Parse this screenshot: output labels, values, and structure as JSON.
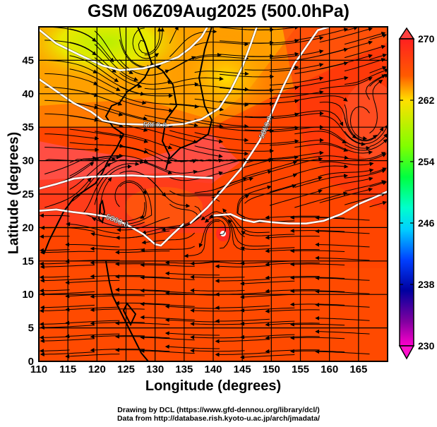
{
  "title": "GSM 06Z09Aug2025 (500.0hPa)",
  "xlabel": "Longitude (degrees)",
  "ylabel": "Latitude  (degrees)",
  "credits": [
    "Drawing by DCL (https://www.gfd-dennou.org/library/dcl/)",
    "Data from http://database.rish.kyoto-u.ac.jp/arch/jmadata/"
  ],
  "chart_data": {
    "type": "heatmap",
    "title": "GSM 06Z09Aug2025 (500.0hPa)",
    "xlabel": "Longitude (degrees)",
    "ylabel": "Latitude  (degrees)",
    "xlim": [
      110,
      170
    ],
    "ylim": [
      0,
      50
    ],
    "xticks": [
      110,
      115,
      120,
      125,
      130,
      135,
      140,
      145,
      150,
      155,
      160,
      165
    ],
    "yticks": [
      0,
      5,
      10,
      15,
      20,
      25,
      30,
      35,
      40,
      45
    ],
    "grid": true,
    "colorbar": {
      "ticks": [
        230,
        238,
        246,
        254,
        262,
        270
      ],
      "range": [
        230,
        270
      ],
      "extend": "both",
      "placement": "right",
      "colors": [
        "#ff00cc",
        "#0000a0",
        "#00e5ff",
        "#00ff40",
        "#ffe800",
        "#ff2020"
      ]
    },
    "contour_label": "5880.0",
    "contours": [
      {
        "label": "5880.0",
        "points": [
          [
            110,
            49.6
          ],
          [
            113,
            47.5
          ],
          [
            117,
            45.8
          ],
          [
            121,
            44.2
          ],
          [
            124,
            43.5
          ],
          [
            128,
            43.8
          ],
          [
            131,
            44.5
          ],
          [
            134,
            45.5
          ],
          [
            136,
            46.8
          ],
          [
            138,
            48.5
          ],
          [
            139,
            50
          ]
        ]
      },
      {
        "label": "5880.0",
        "points": [
          [
            110,
            42.2
          ],
          [
            113,
            40.4
          ],
          [
            116,
            38.6
          ],
          [
            119,
            37.3
          ],
          [
            121,
            36.0
          ],
          [
            124,
            35.5
          ],
          [
            128,
            35.4
          ],
          [
            132,
            35.3
          ],
          [
            135,
            35.5
          ],
          [
            138,
            36.2
          ],
          [
            141,
            37.8
          ],
          [
            143,
            40.5
          ],
          [
            145,
            44
          ],
          [
            146.5,
            47.5
          ],
          [
            147.5,
            50
          ]
        ]
      },
      {
        "label": "5880.0",
        "points": [
          [
            136,
            20.6
          ],
          [
            139,
            23
          ],
          [
            142,
            26
          ],
          [
            145,
            29
          ],
          [
            148,
            33
          ],
          [
            150,
            37
          ],
          [
            152,
            41
          ],
          [
            154,
            44.5
          ],
          [
            156,
            47
          ],
          [
            158,
            49.5
          ],
          [
            160,
            50
          ]
        ]
      },
      {
        "label": "5880.0",
        "points": [
          [
            110,
            25.8
          ],
          [
            113,
            26.5
          ],
          [
            116,
            27.3
          ],
          [
            119,
            27.6
          ],
          [
            122,
            27.7
          ],
          [
            126,
            27.8
          ],
          [
            130,
            27.6
          ],
          [
            134,
            27.7
          ],
          [
            137,
            27.5
          ],
          [
            140,
            27.4
          ]
        ]
      },
      {
        "label": "5880.0",
        "points": [
          [
            110,
            22.5
          ],
          [
            113,
            22.7
          ],
          [
            116,
            22.3
          ],
          [
            119,
            22.0
          ],
          [
            122,
            21.6
          ],
          [
            125,
            20.5
          ],
          [
            128,
            19.0
          ],
          [
            130,
            17.5
          ],
          [
            131,
            17.3
          ],
          [
            133,
            19.0
          ],
          [
            135,
            20.6
          ]
        ]
      },
      {
        "label": "5880.0",
        "points": [
          [
            140,
            21.8
          ],
          [
            143,
            22.0
          ],
          [
            145,
            21.2
          ],
          [
            147,
            20.8
          ],
          [
            148,
            21.0
          ],
          [
            150,
            20.8
          ],
          [
            153,
            20.6
          ],
          [
            156,
            20.6
          ],
          [
            159,
            21.0
          ],
          [
            162,
            22.0
          ],
          [
            165,
            23.5
          ],
          [
            168,
            24.6
          ],
          [
            170,
            25.4
          ]
        ]
      }
    ],
    "fields": "Temperature (K) shaded with streamlines and geopotential height contours"
  }
}
